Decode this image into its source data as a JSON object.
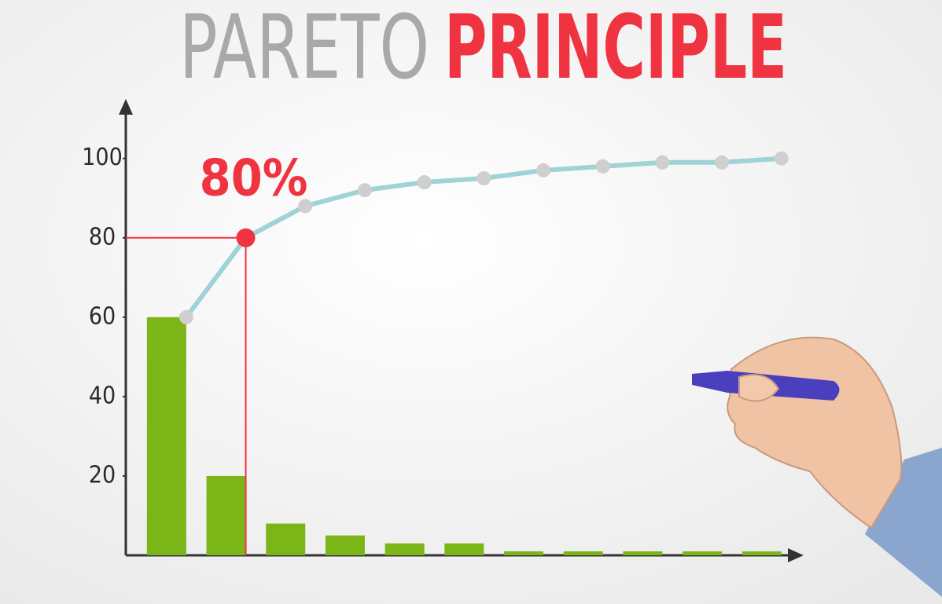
{
  "chart_data": {
    "type": "pareto",
    "title": [
      "Pareto",
      "Principle"
    ],
    "title_colors": [
      "#a9a9a9",
      "#ef3340"
    ],
    "categories": [
      null,
      null,
      null,
      null,
      null,
      null,
      null,
      null,
      null,
      null,
      null
    ],
    "series": [
      {
        "type": "bar",
        "color": "#7cb518",
        "values": [
          60,
          20,
          8,
          5,
          3,
          3,
          1,
          1,
          1,
          1,
          1
        ]
      },
      {
        "type": "line",
        "color": "#9fd3d6",
        "marker_color": "#cfcfcf",
        "values": [
          60,
          80,
          88,
          92,
          94,
          95,
          97,
          98,
          99,
          99,
          100
        ],
        "value_labels": [
          null,
          "80%",
          null,
          null,
          null,
          null,
          null,
          null,
          null,
          null,
          null
        ]
      }
    ],
    "highlight_color": "#ef3340",
    "ylim": [
      0,
      114
    ],
    "yticks": [
      20,
      40,
      60,
      80,
      100
    ],
    "grid": false
  }
}
